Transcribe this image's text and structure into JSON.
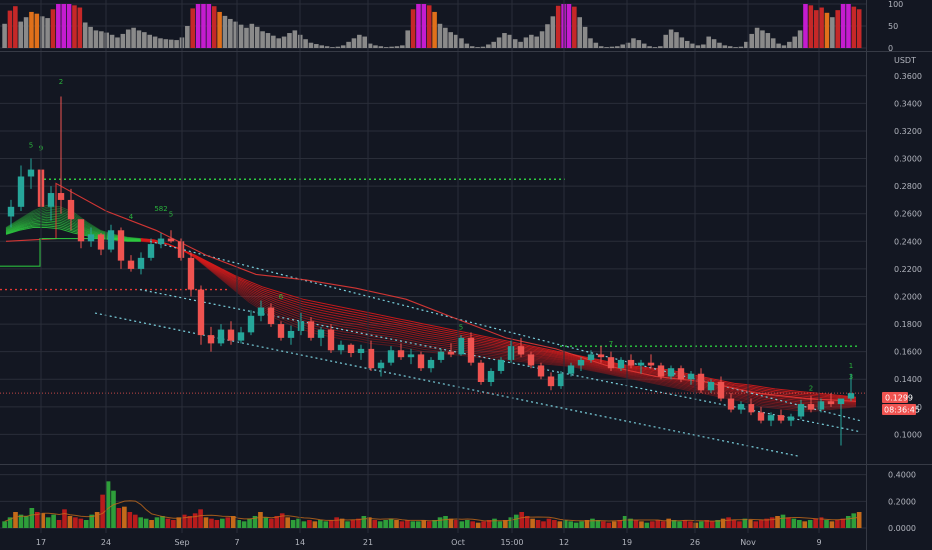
{
  "chart_data": {
    "type": "candlestick",
    "quote_currency": "USDT",
    "last_price": "0.1299",
    "countdown": "08:36:45",
    "x_tick_labels": [
      "17",
      "24",
      "Sep",
      "7",
      "14",
      "21",
      "Oct",
      "15:00",
      "12",
      "19",
      "26",
      "Nov",
      "9"
    ],
    "y_axis": {
      "range": [
        0.08,
        0.37
      ],
      "ticks": [
        "0.3600",
        "0.3400",
        "0.3200",
        "0.3000",
        "0.2800",
        "0.2600",
        "0.2400",
        "0.2200",
        "0.2000",
        "0.1800",
        "0.1600",
        "0.1400",
        "0.1200",
        "0.1000"
      ]
    },
    "oscillator": {
      "range": [
        0,
        100
      ],
      "ticks": [
        "100",
        "50",
        "0"
      ],
      "values": [
        55,
        85,
        95,
        60,
        70,
        82,
        78,
        72,
        68,
        88,
        100,
        100,
        100,
        97,
        92,
        58,
        48,
        40,
        38,
        35,
        30,
        24,
        32,
        42,
        46,
        40,
        36,
        30,
        26,
        22,
        20,
        19,
        18,
        24,
        50,
        90,
        100,
        100,
        100,
        95,
        82,
        73,
        66,
        60,
        53,
        46,
        55,
        48,
        38,
        34,
        28,
        22,
        26,
        34,
        40,
        30,
        20,
        12,
        9,
        6,
        4,
        2,
        3,
        6,
        14,
        22,
        30,
        26,
        10,
        6,
        4,
        2,
        3,
        4,
        6,
        40,
        88,
        100,
        100,
        97,
        82,
        55,
        46,
        36,
        30,
        22,
        10,
        4,
        2,
        3,
        8,
        14,
        24,
        34,
        30,
        20,
        14,
        24,
        30,
        26,
        38,
        54,
        72,
        96,
        100,
        100,
        94,
        70,
        48,
        22,
        12,
        4,
        2,
        3,
        4,
        8,
        12,
        22,
        18,
        10,
        4,
        2,
        4,
        30,
        42,
        36,
        24,
        16,
        10,
        6,
        8,
        26,
        20,
        12,
        6,
        4,
        2,
        3,
        14,
        32,
        46,
        40,
        34,
        22,
        10,
        6,
        14,
        26,
        40,
        100,
        97,
        86,
        92,
        80,
        70,
        86,
        100,
        100,
        94,
        88
      ]
    },
    "price": {
      "ohlc": [
        [
          0.258,
          0.27,
          0.25,
          0.265
        ],
        [
          0.265,
          0.295,
          0.262,
          0.287
        ],
        [
          0.287,
          0.3,
          0.278,
          0.292
        ],
        [
          0.292,
          0.296,
          0.26,
          0.265
        ],
        [
          0.265,
          0.28,
          0.255,
          0.275
        ],
        [
          0.275,
          0.345,
          0.26,
          0.27
        ],
        [
          0.27,
          0.278,
          0.248,
          0.256
        ],
        [
          0.256,
          0.256,
          0.235,
          0.24
        ],
        [
          0.24,
          0.25,
          0.236,
          0.245
        ],
        [
          0.245,
          0.246,
          0.23,
          0.234
        ],
        [
          0.234,
          0.252,
          0.232,
          0.248
        ],
        [
          0.248,
          0.25,
          0.22,
          0.226
        ],
        [
          0.226,
          0.23,
          0.218,
          0.22
        ],
        [
          0.22,
          0.232,
          0.216,
          0.228
        ],
        [
          0.228,
          0.242,
          0.226,
          0.238
        ],
        [
          0.238,
          0.246,
          0.235,
          0.242
        ],
        [
          0.242,
          0.248,
          0.239,
          0.24
        ],
        [
          0.24,
          0.242,
          0.226,
          0.228
        ],
        [
          0.228,
          0.232,
          0.2,
          0.205
        ],
        [
          0.205,
          0.208,
          0.165,
          0.172
        ],
        [
          0.172,
          0.178,
          0.16,
          0.166
        ],
        [
          0.166,
          0.18,
          0.164,
          0.176
        ],
        [
          0.176,
          0.182,
          0.165,
          0.168
        ],
        [
          0.168,
          0.178,
          0.166,
          0.174
        ],
        [
          0.174,
          0.19,
          0.172,
          0.186
        ],
        [
          0.186,
          0.197,
          0.182,
          0.192
        ],
        [
          0.192,
          0.195,
          0.178,
          0.18
        ],
        [
          0.18,
          0.182,
          0.168,
          0.17
        ],
        [
          0.17,
          0.179,
          0.165,
          0.175
        ],
        [
          0.175,
          0.188,
          0.172,
          0.182
        ],
        [
          0.182,
          0.185,
          0.168,
          0.17
        ],
        [
          0.17,
          0.178,
          0.164,
          0.176
        ],
        [
          0.176,
          0.18,
          0.159,
          0.161
        ],
        [
          0.161,
          0.168,
          0.158,
          0.165
        ],
        [
          0.165,
          0.166,
          0.156,
          0.159
        ],
        [
          0.159,
          0.165,
          0.154,
          0.162
        ],
        [
          0.162,
          0.168,
          0.146,
          0.148
        ],
        [
          0.148,
          0.154,
          0.142,
          0.152
        ],
        [
          0.152,
          0.164,
          0.15,
          0.161
        ],
        [
          0.161,
          0.166,
          0.154,
          0.156
        ],
        [
          0.156,
          0.162,
          0.151,
          0.158
        ],
        [
          0.158,
          0.16,
          0.146,
          0.148
        ],
        [
          0.148,
          0.156,
          0.145,
          0.154
        ],
        [
          0.154,
          0.162,
          0.152,
          0.16
        ],
        [
          0.16,
          0.166,
          0.156,
          0.158
        ],
        [
          0.158,
          0.172,
          0.157,
          0.17
        ],
        [
          0.17,
          0.174,
          0.15,
          0.152
        ],
        [
          0.152,
          0.154,
          0.136,
          0.138
        ],
        [
          0.138,
          0.148,
          0.135,
          0.146
        ],
        [
          0.146,
          0.156,
          0.144,
          0.154
        ],
        [
          0.154,
          0.168,
          0.152,
          0.164
        ],
        [
          0.164,
          0.17,
          0.156,
          0.158
        ],
        [
          0.158,
          0.16,
          0.148,
          0.15
        ],
        [
          0.15,
          0.152,
          0.14,
          0.142
        ],
        [
          0.142,
          0.145,
          0.132,
          0.135
        ],
        [
          0.135,
          0.146,
          0.133,
          0.144
        ],
        [
          0.144,
          0.152,
          0.142,
          0.15
        ],
        [
          0.15,
          0.156,
          0.146,
          0.154
        ],
        [
          0.154,
          0.161,
          0.152,
          0.158
        ],
        [
          0.158,
          0.164,
          0.152,
          0.156
        ],
        [
          0.156,
          0.16,
          0.146,
          0.148
        ],
        [
          0.148,
          0.156,
          0.146,
          0.154
        ],
        [
          0.154,
          0.158,
          0.148,
          0.15
        ],
        [
          0.15,
          0.154,
          0.144,
          0.152
        ],
        [
          0.152,
          0.158,
          0.148,
          0.15
        ],
        [
          0.15,
          0.152,
          0.14,
          0.142
        ],
        [
          0.142,
          0.15,
          0.14,
          0.148
        ],
        [
          0.148,
          0.15,
          0.138,
          0.14
        ],
        [
          0.14,
          0.146,
          0.136,
          0.144
        ],
        [
          0.144,
          0.148,
          0.13,
          0.132
        ],
        [
          0.132,
          0.14,
          0.13,
          0.138
        ],
        [
          0.138,
          0.142,
          0.124,
          0.126
        ],
        [
          0.126,
          0.13,
          0.116,
          0.118
        ],
        [
          0.118,
          0.124,
          0.115,
          0.122
        ],
        [
          0.122,
          0.126,
          0.114,
          0.116
        ],
        [
          0.116,
          0.12,
          0.108,
          0.11
        ],
        [
          0.11,
          0.116,
          0.106,
          0.114
        ],
        [
          0.114,
          0.118,
          0.108,
          0.11
        ],
        [
          0.11,
          0.115,
          0.106,
          0.113
        ],
        [
          0.113,
          0.125,
          0.111,
          0.122
        ],
        [
          0.122,
          0.128,
          0.116,
          0.118
        ],
        [
          0.118,
          0.126,
          0.116,
          0.124
        ],
        [
          0.124,
          0.13,
          0.12,
          0.122
        ],
        [
          0.122,
          0.124,
          0.092,
          0.126
        ],
        [
          0.126,
          0.144,
          0.124,
          0.1299
        ]
      ],
      "ribbon_band_top": [
        0.25,
        0.256,
        0.262,
        0.266,
        0.265,
        0.261,
        0.254,
        0.248,
        0.245,
        0.243,
        0.242,
        0.241,
        0.238,
        0.234,
        0.23,
        0.225,
        0.22,
        0.215,
        0.211,
        0.207,
        0.204,
        0.201,
        0.198,
        0.196,
        0.194,
        0.192,
        0.19,
        0.188,
        0.186,
        0.184,
        0.182,
        0.18,
        0.178,
        0.176,
        0.174,
        0.172,
        0.17,
        0.168,
        0.166,
        0.164,
        0.162,
        0.16,
        0.158,
        0.156,
        0.154,
        0.152,
        0.15,
        0.149,
        0.148,
        0.147,
        0.145,
        0.143,
        0.141,
        0.139,
        0.137,
        0.136,
        0.1345,
        0.133,
        0.132,
        0.131,
        0.13,
        0.129,
        0.128,
        0.127
      ],
      "ribbon_band_bottom": [
        0.245,
        0.248,
        0.25,
        0.25,
        0.249,
        0.246,
        0.244,
        0.242,
        0.241,
        0.24,
        0.24,
        0.239,
        0.238,
        0.234,
        0.228,
        0.22,
        0.212,
        0.204,
        0.196,
        0.19,
        0.184,
        0.18,
        0.176,
        0.173,
        0.171,
        0.169,
        0.168,
        0.166,
        0.165,
        0.164,
        0.162,
        0.16,
        0.159,
        0.158,
        0.157,
        0.156,
        0.155,
        0.154,
        0.153,
        0.152,
        0.151,
        0.15,
        0.149,
        0.147,
        0.145,
        0.143,
        0.141,
        0.139,
        0.137,
        0.135,
        0.133,
        0.131,
        0.129,
        0.127,
        0.125,
        0.123,
        0.12,
        0.119,
        0.118,
        0.117,
        0.117,
        0.118,
        0.119,
        0.12
      ],
      "channel_upper": [
        [
          0.24,
          0.235
        ],
        [
          0.135,
          0.11
        ]
      ],
      "channel_lower": [
        [
          0.205,
          0.2
        ],
        [
          0.088,
          0.084
        ]
      ],
      "resistance_levels": [
        0.285,
        0.205,
        0.164
      ],
      "trail_stop": [
        [
          0.24,
          0.242
        ],
        [
          0.282,
          0.262
        ],
        [
          0.262,
          0.248
        ],
        [
          0.248,
          0.23
        ],
        [
          0.23,
          0.216
        ],
        [
          0.216,
          0.212
        ],
        [
          0.212,
          0.206
        ],
        [
          0.206,
          0.198
        ],
        [
          0.198,
          0.184
        ],
        [
          0.184,
          0.17
        ],
        [
          0.17,
          0.162
        ],
        [
          0.162,
          0.15
        ],
        [
          0.15,
          0.142
        ],
        [
          0.142,
          0.138
        ],
        [
          0.138,
          0.13
        ],
        [
          0.13,
          0.126
        ],
        [
          0.126,
          0.124
        ]
      ],
      "markers": [
        "2",
        "5",
        "9",
        "4",
        "5",
        "582",
        "6",
        "5",
        "7",
        "2",
        "1",
        "3"
      ]
    },
    "volume": {
      "range": [
        0,
        0.45
      ],
      "ticks": [
        "0.4000",
        "0.2000",
        "0.0000"
      ],
      "values": [
        0.05,
        0.08,
        0.12,
        0.1,
        0.09,
        0.15,
        0.12,
        0.11,
        0.08,
        0.1,
        0.06,
        0.14,
        0.09,
        0.08,
        0.07,
        0.06,
        0.1,
        0.12,
        0.25,
        0.35,
        0.28,
        0.15,
        0.16,
        0.12,
        0.1,
        0.08,
        0.07,
        0.06,
        0.08,
        0.09,
        0.07,
        0.06,
        0.08,
        0.1,
        0.09,
        0.11,
        0.14,
        0.08,
        0.07,
        0.06,
        0.07,
        0.08,
        0.09,
        0.06,
        0.05,
        0.07,
        0.09,
        0.12,
        0.08,
        0.07,
        0.09,
        0.11,
        0.08,
        0.06,
        0.07,
        0.05,
        0.06,
        0.05,
        0.06,
        0.05,
        0.06,
        0.08,
        0.07,
        0.05,
        0.06,
        0.07,
        0.09,
        0.08,
        0.06,
        0.05,
        0.06,
        0.07,
        0.06,
        0.05,
        0.06,
        0.05,
        0.05,
        0.06,
        0.05,
        0.06,
        0.08,
        0.09,
        0.07,
        0.06,
        0.05,
        0.06,
        0.05,
        0.04,
        0.05,
        0.06,
        0.07,
        0.05,
        0.06,
        0.08,
        0.1,
        0.12,
        0.09,
        0.07,
        0.06,
        0.05,
        0.07,
        0.06,
        0.05,
        0.06,
        0.05,
        0.04,
        0.05,
        0.06,
        0.07,
        0.06,
        0.05,
        0.04,
        0.05,
        0.06,
        0.09,
        0.07,
        0.06,
        0.05,
        0.04,
        0.05,
        0.06,
        0.05,
        0.07,
        0.06,
        0.05,
        0.06,
        0.05,
        0.04,
        0.05,
        0.06,
        0.05,
        0.06,
        0.07,
        0.08,
        0.06,
        0.05,
        0.07,
        0.06,
        0.05,
        0.06,
        0.07,
        0.08,
        0.09,
        0.1,
        0.08,
        0.07,
        0.06,
        0.05,
        0.06,
        0.07,
        0.08,
        0.06,
        0.05,
        0.06,
        0.07,
        0.09,
        0.11,
        0.12
      ]
    },
    "colors": {
      "background": "#131722",
      "grid": "#2a2e39",
      "up": "#26a69a",
      "down": "#ef5350",
      "ribbon_bull": "#2ecc40",
      "ribbon_bear": "#d81b1b",
      "trail_stop": "#e53935",
      "resistance_green": "#2ecc40",
      "resistance_red": "#e53935",
      "channel": "#7ad0dd",
      "osc_gray": "#8a8a8a",
      "osc_red": "#c62828",
      "osc_orange": "#e0701a",
      "osc_magenta": "#c41ccf",
      "vol_green": "#2e9e3a",
      "vol_red": "#b71c1c",
      "vol_orange": "#c46a1a"
    }
  }
}
